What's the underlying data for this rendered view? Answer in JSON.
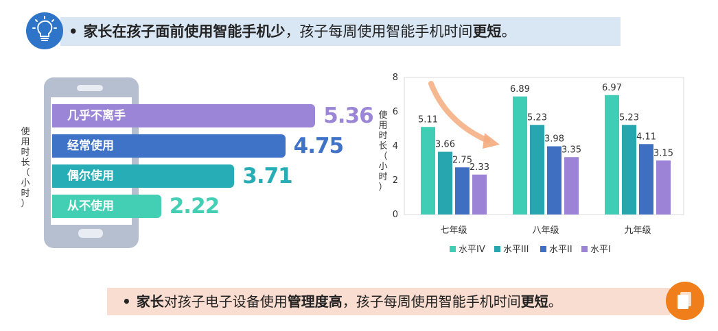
{
  "top_banner": {
    "bullet": "•",
    "bold1": "家长在孩子面前使用智能手机少",
    "normal1": "，孩子每周使用智能手机时间",
    "bold2": "更短",
    "end": "。"
  },
  "bottom_banner": {
    "bullet": "•",
    "bold1": "家长",
    "normal1": "对孩子电子设备使用",
    "bold2": "管理度高",
    "normal2": "，孩子每周使用智能手机时间",
    "bold3": "更短",
    "end": "。"
  },
  "left_chart_ylabel": [
    "使",
    "用",
    "时",
    "长",
    "（",
    "小",
    "时",
    "）"
  ],
  "right_chart_ylabel": [
    "使",
    "用",
    "时",
    "长",
    "（",
    "小",
    "时",
    "）"
  ],
  "colors": {
    "top_banner_bg": "#d9e6f4",
    "bottom_banner_bg": "#f9ddd0",
    "accent_blue": "#2e74c9",
    "accent_orange": "#f07e1a",
    "arrow": "#f4ab7e"
  },
  "icons": {
    "top": "lightbulb-icon",
    "bottom": "documents-icon"
  },
  "chart_data": [
    {
      "type": "bar",
      "orientation": "horizontal",
      "categories": [
        "几乎不离手",
        "经常使用",
        "偶尔使用",
        "从不使用"
      ],
      "values": [
        5.36,
        4.75,
        3.71,
        2.22
      ],
      "value_labels": [
        "5.36",
        "4.75",
        "3.71",
        "2.22"
      ],
      "bar_colors": [
        "#9b85d6",
        "#3f73c7",
        "#27adb6",
        "#43cfb4"
      ],
      "xlabel": "",
      "ylabel": "使用时长（小时）",
      "grid": false
    },
    {
      "type": "bar",
      "categories": [
        "七年级",
        "八年级",
        "九年级"
      ],
      "series": [
        {
          "name": "水平IV",
          "color": "#40cdb6",
          "values": [
            5.11,
            6.89,
            6.97
          ],
          "labels": [
            "5.11",
            "6.89",
            "6.97"
          ]
        },
        {
          "name": "水平III",
          "color": "#27a6b0",
          "values": [
            3.66,
            5.23,
            5.23
          ],
          "labels": [
            "3.66",
            "5.23",
            "5.23"
          ]
        },
        {
          "name": "水平II",
          "color": "#3e6fc0",
          "values": [
            2.75,
            3.98,
            4.11
          ],
          "labels": [
            "2.75",
            "3.98",
            "4.11"
          ]
        },
        {
          "name": "水平I",
          "color": "#9c83d6",
          "values": [
            2.33,
            3.35,
            3.15
          ],
          "labels": [
            "2.33",
            "3.35",
            "3.15"
          ]
        }
      ],
      "ylim": [
        0,
        8
      ],
      "yticks": [
        0,
        2,
        4,
        6,
        8
      ],
      "ytick_labels": [
        "0",
        "2",
        "4",
        "6",
        "8"
      ],
      "ylabel": "使用时长（小时）",
      "xlabel": "",
      "grid": false,
      "legend": "bottom"
    }
  ]
}
